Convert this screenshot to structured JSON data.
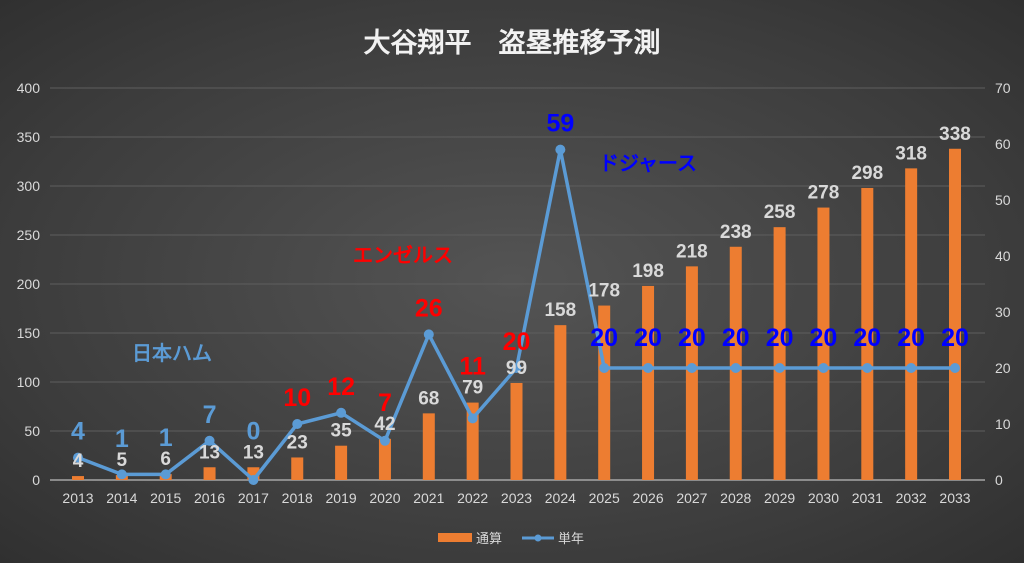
{
  "chart_data": {
    "type": "bar+line",
    "title": "大谷翔平　盗塁推移予測",
    "categories": [
      "2013",
      "2014",
      "2015",
      "2016",
      "2017",
      "2018",
      "2019",
      "2020",
      "2021",
      "2022",
      "2023",
      "2024",
      "2025",
      "2026",
      "2027",
      "2028",
      "2029",
      "2030",
      "2031",
      "2032",
      "2033"
    ],
    "series": [
      {
        "name": "通算",
        "type": "bar",
        "axis": "left",
        "color": "#ed7d31",
        "values": [
          4,
          5,
          6,
          13,
          13,
          23,
          35,
          42,
          68,
          79,
          99,
          158,
          178,
          198,
          218,
          238,
          258,
          278,
          298,
          318,
          338
        ]
      },
      {
        "name": "単年",
        "type": "line",
        "axis": "right",
        "color": "#5b9bd5",
        "values": [
          4,
          1,
          1,
          7,
          0,
          10,
          12,
          7,
          26,
          11,
          20,
          59,
          20,
          20,
          20,
          20,
          20,
          20,
          20,
          20,
          20
        ]
      }
    ],
    "label_colors": {
      "日本ハム": "#5b9bd5",
      "エンゼルス": "#ff0000",
      "ドジャース": "#0000ff"
    },
    "teams": [
      "日本ハム",
      "日本ハム",
      "日本ハム",
      "日本ハム",
      "日本ハム",
      "エンゼルス",
      "エンゼルス",
      "エンゼルス",
      "エンゼルス",
      "エンゼルス",
      "エンゼルス",
      "ドジャース",
      "ドジャース",
      "ドジャース",
      "ドジャース",
      "ドジャース",
      "ドジャース",
      "ドジャース",
      "ドジャース",
      "ドジャース",
      "ドジャース"
    ],
    "annotations": [
      "日本ハム",
      "エンゼルス",
      "ドジャース"
    ],
    "ylim": [
      0,
      400
    ],
    "y_ticks": [
      0,
      50,
      100,
      150,
      200,
      250,
      300,
      350,
      400
    ],
    "y2lim": [
      0,
      70
    ],
    "y2_ticks": [
      0,
      10,
      20,
      30,
      40,
      50,
      60,
      70
    ],
    "grid": true,
    "legend": "bottom"
  }
}
